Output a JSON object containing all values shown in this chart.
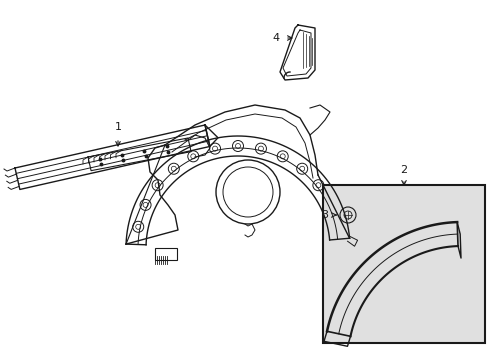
{
  "background_color": "#ffffff",
  "box_fill": "#e8e8e8",
  "line_color": "#1a1a1a",
  "label_1": "1",
  "label_2": "2",
  "label_3": "3",
  "label_4": "4",
  "figsize": [
    4.9,
    3.6
  ],
  "dpi": 100
}
